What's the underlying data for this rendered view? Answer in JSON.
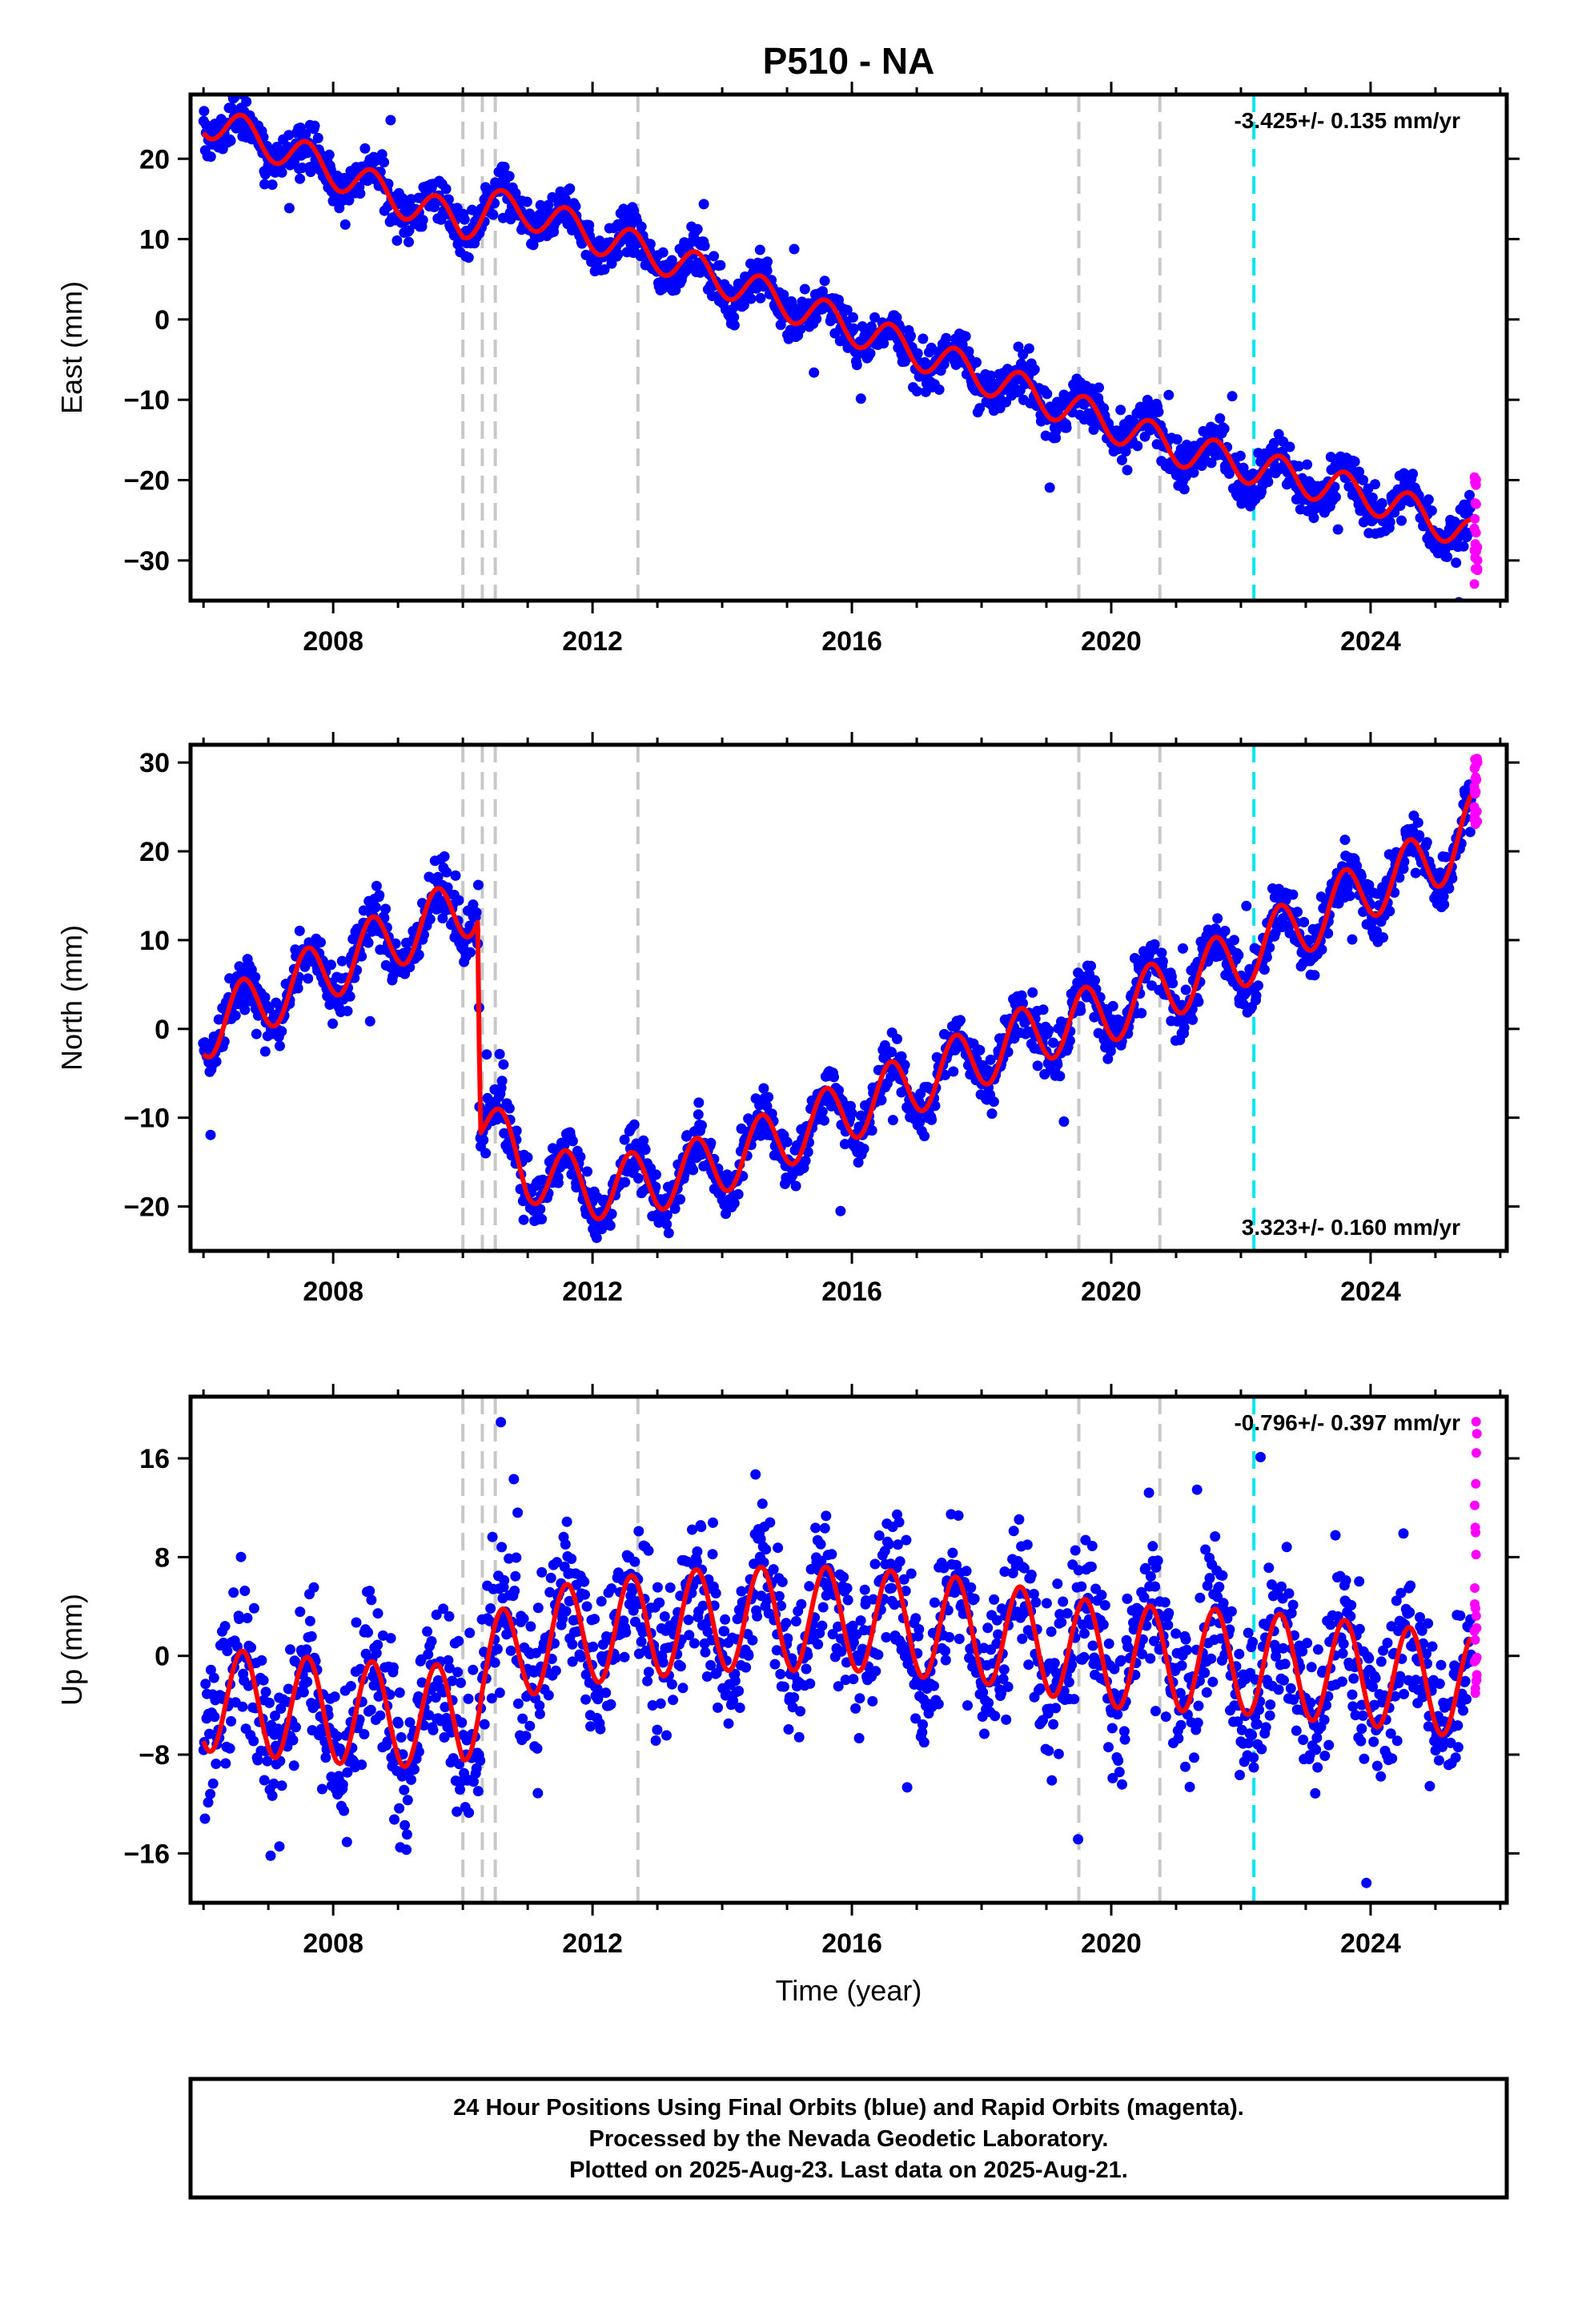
{
  "title": "P510 - NA",
  "footer": {
    "lines": [
      "24 Hour Positions Using Final Orbits (blue) and Rapid Orbits (magenta).",
      "Processed by the Nevada Geodetic Laboratory.",
      "Plotted on 2025-Aug-23. Last data on 2025-Aug-21."
    ]
  },
  "colors": {
    "final_orbits": "#0000ff",
    "rapid_orbits": "#ff00ff",
    "model_fit": "#ff0000",
    "equipment_change_lines": "#c8c8c8",
    "earthquake_line": "#00e5ee"
  },
  "chart_data": [
    {
      "type": "scatter",
      "ylabel": "East (mm)",
      "xlabel": "",
      "xlim": [
        2005.8,
        2026.1
      ],
      "ylim": [
        -35,
        28
      ],
      "x_ticks": [
        2008,
        2012,
        2016,
        2020,
        2024
      ],
      "y_ticks": [
        20,
        10,
        0,
        -10,
        -20,
        -30
      ],
      "rate_label": "-3.425+/- 0.135 mm/yr",
      "rate_label_position": "top-right",
      "equipment_changes": [
        2010.0,
        2010.3,
        2010.5,
        2012.7,
        2019.5,
        2020.75
      ],
      "earthquake": 2022.2,
      "series": [
        {
          "name": "Final Orbits",
          "start": 2006.0,
          "end": 2025.55,
          "x": [
            2006.0,
            2007.0,
            2008.0,
            2009.0,
            2010.0,
            2010.45,
            2011.0,
            2012.0,
            2013.0,
            2014.0,
            2015.0,
            2016.0,
            2017.0,
            2018.0,
            2019.0,
            2020.0,
            2021.0,
            2022.0,
            2023.0,
            2024.0,
            2025.0,
            2025.55
          ],
          "y": [
            25,
            22,
            18.5,
            15,
            12,
            14,
            13.5,
            10.5,
            8,
            5,
            2,
            -1,
            -4,
            -7,
            -10,
            -13,
            -16,
            -18,
            -20,
            -22,
            -25,
            -27
          ],
          "seasonal_amplitude": 2.2,
          "scatter_spread": 1.4
        },
        {
          "name": "Rapid Orbits",
          "x": [
            2025.6,
            2025.63,
            2025.65
          ],
          "y": [
            -26,
            -23,
            -30
          ],
          "range": [
            -34,
            -19
          ]
        }
      ]
    },
    {
      "type": "scatter",
      "ylabel": "North (mm)",
      "xlabel": "",
      "xlim": [
        2005.8,
        2026.1
      ],
      "ylim": [
        -25,
        32
      ],
      "x_ticks": [
        2008,
        2012,
        2016,
        2020,
        2024
      ],
      "y_ticks": [
        30,
        20,
        10,
        0,
        -10,
        -20
      ],
      "rate_label": "3.323+/- 0.160 mm/yr",
      "rate_label_position": "bottom-right",
      "equipment_changes": [
        2010.0,
        2010.3,
        2010.5,
        2012.7,
        2019.5,
        2020.75
      ],
      "earthquake": 2022.2,
      "offset": {
        "at": 2010.25,
        "from": 15,
        "to": -10
      },
      "series": [
        {
          "name": "Final Orbits",
          "start": 2006.0,
          "end": 2025.55,
          "x": [
            2006.0,
            2007.0,
            2008.0,
            2009.0,
            2010.0,
            2010.24,
            2010.26,
            2011.0,
            2012.0,
            2013.0,
            2014.0,
            2015.0,
            2016.0,
            2017.0,
            2018.0,
            2019.0,
            2020.0,
            2021.0,
            2022.0,
            2023.0,
            2024.0,
            2025.0,
            2025.55
          ],
          "y": [
            0,
            3.5,
            7,
            10.5,
            13.5,
            14.5,
            -10,
            -16,
            -18,
            -17,
            -15,
            -12,
            -9,
            -6,
            -3,
            0,
            2,
            5,
            8,
            12,
            16,
            19,
            23
          ],
          "seasonal_amplitude": 3.5,
          "scatter_spread": 1.5
        },
        {
          "name": "Rapid Orbits",
          "x": [
            2025.6,
            2025.63,
            2025.65
          ],
          "y": [
            25,
            28,
            30
          ],
          "range": [
            23,
            31
          ]
        }
      ]
    },
    {
      "type": "scatter",
      "ylabel": "Up (mm)",
      "xlabel": "Time (year)",
      "xlim": [
        2005.8,
        2026.1
      ],
      "ylim": [
        -20,
        21
      ],
      "x_ticks": [
        2008,
        2012,
        2016,
        2020,
        2024
      ],
      "y_ticks": [
        16,
        8,
        0,
        -8,
        -16
      ],
      "rate_label": "-0.796+/- 0.397 mm/yr",
      "rate_label_position": "top-right",
      "equipment_changes": [
        2010.0,
        2010.3,
        2010.5,
        2012.7,
        2019.5,
        2020.75
      ],
      "earthquake": 2022.2,
      "series": [
        {
          "name": "Final Orbits",
          "start": 2006.0,
          "end": 2025.55,
          "x": [
            2006.0,
            2008.0,
            2010.0,
            2010.3,
            2011.0,
            2012.0,
            2014.0,
            2016.0,
            2018.0,
            2019.5,
            2020.0,
            2022.0,
            2024.0,
            2025.55
          ],
          "y": [
            -3.5,
            -4.5,
            -5.0,
            -1.5,
            1.0,
            2.0,
            3.0,
            3.0,
            2.0,
            0.5,
            0.0,
            -0.5,
            -1.5,
            -2.5
          ],
          "seasonal_amplitude": 4.2,
          "scatter_spread": 3.0
        },
        {
          "name": "Rapid Orbits",
          "x": [
            2025.6,
            2025.62,
            2025.64
          ],
          "y": [
            2,
            10,
            18
          ],
          "range": [
            -4,
            20
          ]
        }
      ]
    }
  ]
}
